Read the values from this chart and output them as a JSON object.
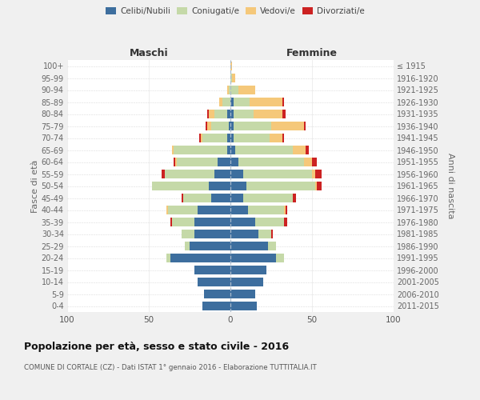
{
  "age_groups": [
    "0-4",
    "5-9",
    "10-14",
    "15-19",
    "20-24",
    "25-29",
    "30-34",
    "35-39",
    "40-44",
    "45-49",
    "50-54",
    "55-59",
    "60-64",
    "65-69",
    "70-74",
    "75-79",
    "80-84",
    "85-89",
    "90-94",
    "95-99",
    "100+"
  ],
  "birth_years": [
    "2011-2015",
    "2006-2010",
    "2001-2005",
    "1996-2000",
    "1991-1995",
    "1986-1990",
    "1981-1985",
    "1976-1980",
    "1971-1975",
    "1966-1970",
    "1961-1965",
    "1956-1960",
    "1951-1955",
    "1946-1950",
    "1941-1945",
    "1936-1940",
    "1931-1935",
    "1926-1930",
    "1921-1925",
    "1916-1920",
    "≤ 1915"
  ],
  "colors": {
    "celibe": "#3d6e9e",
    "coniugato": "#c5d9a8",
    "vedovo": "#f5c87a",
    "divorziato": "#cc2222"
  },
  "males": {
    "celibe": [
      17,
      16,
      20,
      22,
      37,
      25,
      22,
      22,
      20,
      12,
      13,
      10,
      8,
      2,
      2,
      1,
      2,
      0,
      0,
      0,
      0
    ],
    "coniugato": [
      0,
      0,
      0,
      0,
      2,
      3,
      8,
      14,
      18,
      17,
      35,
      30,
      25,
      33,
      15,
      11,
      8,
      5,
      1,
      0,
      0
    ],
    "vedovo": [
      0,
      0,
      0,
      0,
      0,
      0,
      0,
      0,
      1,
      0,
      0,
      0,
      1,
      1,
      1,
      2,
      3,
      2,
      1,
      0,
      0
    ],
    "divorziato": [
      0,
      0,
      0,
      0,
      0,
      0,
      0,
      1,
      0,
      1,
      0,
      2,
      1,
      0,
      1,
      1,
      1,
      0,
      0,
      0,
      0
    ]
  },
  "females": {
    "nubile": [
      16,
      15,
      20,
      22,
      28,
      23,
      17,
      15,
      11,
      8,
      10,
      8,
      5,
      3,
      2,
      2,
      2,
      2,
      0,
      0,
      0
    ],
    "coniugata": [
      0,
      0,
      0,
      0,
      5,
      5,
      8,
      18,
      22,
      30,
      42,
      42,
      40,
      35,
      22,
      23,
      12,
      10,
      5,
      1,
      0
    ],
    "vedova": [
      0,
      0,
      0,
      0,
      0,
      0,
      0,
      0,
      1,
      0,
      1,
      2,
      5,
      8,
      8,
      20,
      18,
      20,
      10,
      2,
      1
    ],
    "divorziata": [
      0,
      0,
      0,
      0,
      0,
      0,
      1,
      2,
      1,
      2,
      3,
      4,
      3,
      2,
      1,
      1,
      2,
      1,
      0,
      0,
      0
    ]
  },
  "title": "Popolazione per età, sesso e stato civile - 2016",
  "subtitle": "COMUNE DI CORTALE (CZ) - Dati ISTAT 1° gennaio 2016 - Elaborazione TUTTITALIA.IT",
  "ylabel_left": "Fasce di età",
  "ylabel_right": "Anni di nascita",
  "xlabel_left": "Maschi",
  "xlabel_right": "Femmine",
  "xlim": 100,
  "background_color": "#f0f0f0",
  "plot_background": "#ffffff",
  "grid_color": "#cccccc"
}
